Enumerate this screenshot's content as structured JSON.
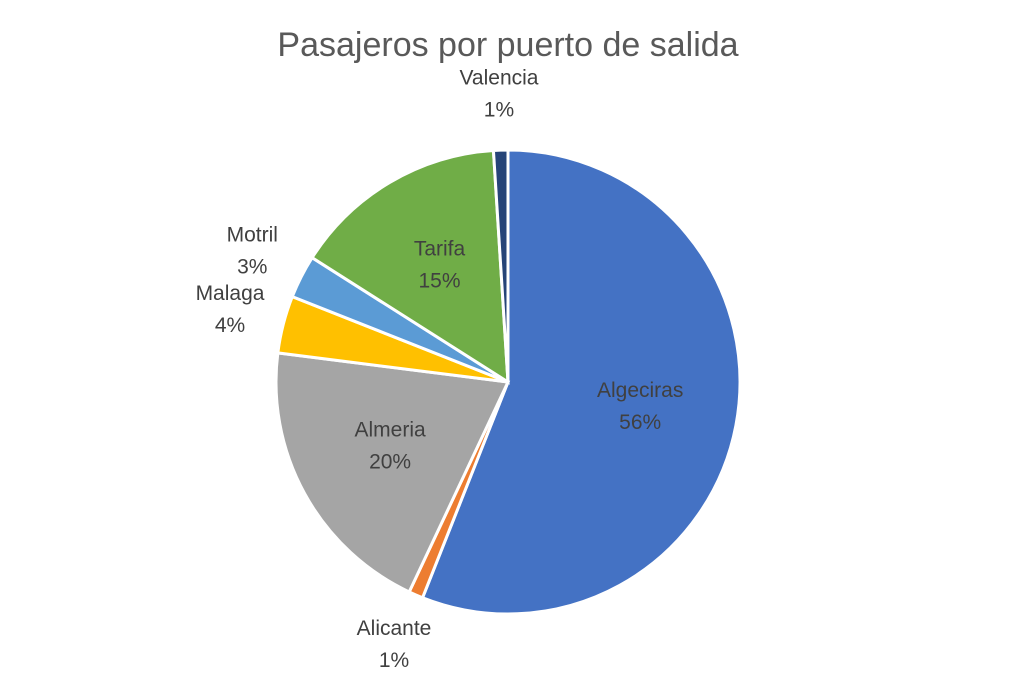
{
  "chart_data": {
    "type": "pie",
    "title": "Pasajeros por puerto de salida",
    "categories": [
      "Algeciras",
      "Alicante",
      "Almeria",
      "Malaga",
      "Motril",
      "Tarifa",
      "Valencia"
    ],
    "values": [
      56,
      1,
      20,
      4,
      3,
      15,
      1
    ],
    "value_labels": [
      "56%",
      "1%",
      "20%",
      "4%",
      "3%",
      "15%",
      "1%"
    ],
    "colors": [
      "#4472c4",
      "#ed7d31",
      "#a5a5a5",
      "#ffc000",
      "#5b9bd5",
      "#70ad47",
      "#264478"
    ]
  }
}
